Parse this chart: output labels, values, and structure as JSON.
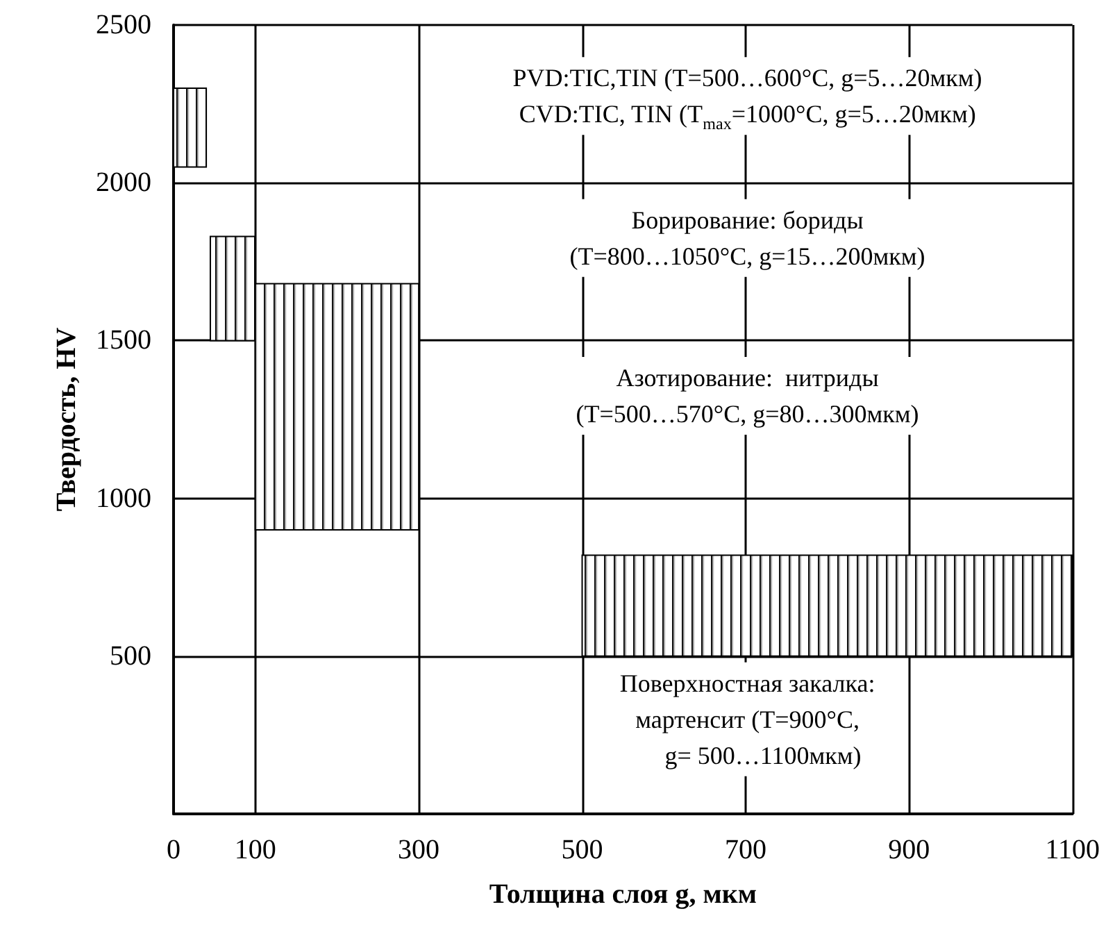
{
  "chart_data": {
    "type": "histogram",
    "xlabel": "Толщина слоя g, мкм",
    "ylabel": "Твердость, HV",
    "xlim": [
      0,
      1100
    ],
    "ylim": [
      0,
      2500
    ],
    "xticks": [
      0,
      100,
      300,
      500,
      700,
      900,
      1100
    ],
    "yticks": [
      500,
      1000,
      1500,
      2000,
      2500
    ],
    "grid": true,
    "bins": [
      0,
      40,
      45,
      100,
      300,
      500,
      1100
    ],
    "values": [
      250,
      null,
      330,
      780,
      null,
      320
    ],
    "base": [
      2050,
      null,
      1500,
      900,
      null,
      500
    ],
    "color": "#000000",
    "annotations": [
      "PVD:TIC,TIN (T=500…600°C, g=5…20мкм)\nCVD:TIC, TIN (T$_{max}$=1000°C, g=5…20мкм)",
      "Борирование: бориды\n(T=800…1050°C, g=15…200мкм)",
      "Азотирование:  нитриды\n(T=500…570°C, g=80…300мкм)",
      "Поверхностная закалка:\nмартенсит (T=900°C,\n     g= 500…1100мкм)"
    ]
  }
}
